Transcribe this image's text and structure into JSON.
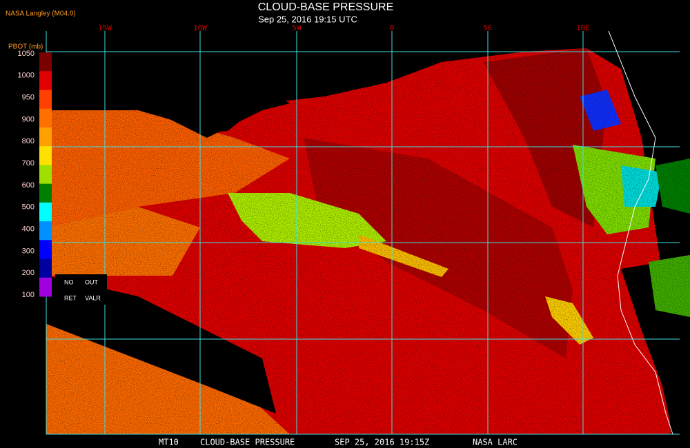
{
  "header": {
    "source": "NASA Langley (M04.0)",
    "title": "CLOUD-BASE PRESSURE",
    "subtitle": "Sep 25, 2016 19:15 UTC"
  },
  "map": {
    "longitude_labels": [
      "15W",
      "10W",
      "5W",
      "0",
      "5E",
      "10E"
    ]
  },
  "legend": {
    "title": "PBOT (mb)",
    "labels": [
      1050,
      1000,
      950,
      900,
      800,
      700,
      600,
      500,
      400,
      300,
      200,
      100
    ],
    "colors": [
      "#7a0000",
      "#e00000",
      "#ff4000",
      "#ff7000",
      "#ffa000",
      "#ffe000",
      "#a0e000",
      "#008000",
      "#00ffff",
      "#0090ff",
      "#0000ff",
      "#0000a0",
      "#a000e0"
    ],
    "notes": [
      "NO",
      "OUT",
      "RET",
      "VALR"
    ]
  },
  "footer": [
    "MT10",
    "CLOUD-BASE PRESSURE",
    "SEP 25, 2016 19:15Z",
    "NASA LARC"
  ]
}
